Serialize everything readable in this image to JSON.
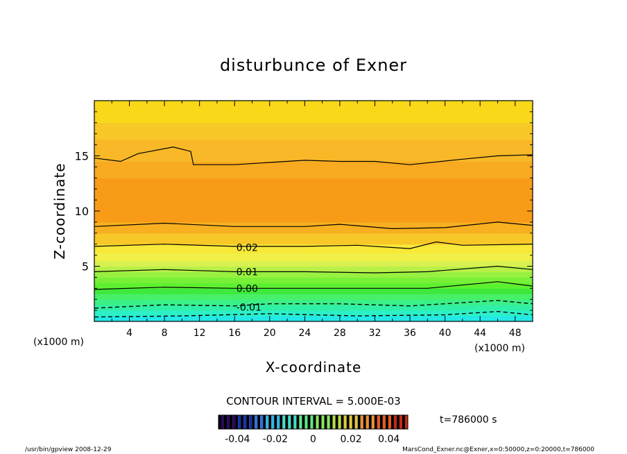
{
  "chart_data": {
    "type": "heatmap",
    "title": "disturbunce of Exner",
    "xlabel": "X-coordinate",
    "ylabel": "Z-coordinate",
    "x_units": "(x1000 m)",
    "y_units": "(x1000 m)",
    "xlim": [
      0,
      50
    ],
    "ylim": [
      0,
      20
    ],
    "x_ticks": [
      4,
      8,
      12,
      16,
      20,
      24,
      28,
      32,
      36,
      40,
      44,
      48
    ],
    "y_ticks": [
      5,
      10,
      15
    ],
    "contour_interval_text": "CONTOUR INTERVAL = 5.000E-03",
    "contour_labels": [
      {
        "text": "0.02",
        "x": 16.2,
        "z": 6.7
      },
      {
        "text": "0.01",
        "x": 16.2,
        "z": 4.5
      },
      {
        "text": "0.00",
        "x": 16.2,
        "z": 3.0
      },
      {
        "text": "-0.01",
        "x": 16.2,
        "z": 1.3
      }
    ],
    "colorbar": {
      "range": [
        -0.05,
        0.05
      ],
      "tick_labels": [
        "-0.04",
        "-0.02",
        "0",
        "0.02",
        "0.04"
      ],
      "tick_values": [
        -0.04,
        -0.02,
        0,
        0.02,
        0.04
      ],
      "colors": [
        "#2a0a5e",
        "#1830a8",
        "#2d6fe0",
        "#32b5e8",
        "#3fe0c8",
        "#5fe88a",
        "#8ae85a",
        "#b8e040",
        "#e0c838",
        "#f09030",
        "#e85a20",
        "#c82818"
      ]
    },
    "time_label": "t=786000 s",
    "footer_left": "/usr/bin/gpview  2008-12-29",
    "footer_right": "MarsCond_Exner.nc@Exner,x=0:50000,z=0:20000,t=786000",
    "bands": [
      {
        "z": [
          0,
          0.5
        ],
        "color": "#22e8e8"
      },
      {
        "z": [
          0.5,
          1.0
        ],
        "color": "#2cf0c8"
      },
      {
        "z": [
          1.0,
          1.5
        ],
        "color": "#30f0a8"
      },
      {
        "z": [
          1.5,
          2.0
        ],
        "color": "#3cf088"
      },
      {
        "z": [
          2.0,
          2.5
        ],
        "color": "#48f068"
      },
      {
        "z": [
          2.5,
          3.0
        ],
        "color": "#3ee83c"
      },
      {
        "z": [
          3.0,
          3.5
        ],
        "color": "#5ef030"
      },
      {
        "z": [
          3.5,
          4.0
        ],
        "color": "#78f038"
      },
      {
        "z": [
          4.0,
          4.5
        ],
        "color": "#98f040"
      },
      {
        "z": [
          4.5,
          5.0
        ],
        "color": "#b8f048"
      },
      {
        "z": [
          5.0,
          5.5
        ],
        "color": "#d8f050"
      },
      {
        "z": [
          5.5,
          6.2
        ],
        "color": "#f0f048"
      },
      {
        "z": [
          6.2,
          7.0
        ],
        "color": "#f8e838"
      },
      {
        "z": [
          7.0,
          8.0
        ],
        "color": "#f8c828"
      },
      {
        "z": [
          8.0,
          9.0
        ],
        "color": "#f8b020"
      },
      {
        "z": [
          9.0,
          13.0
        ],
        "color": "#f89c18"
      },
      {
        "z": [
          13.0,
          14.5
        ],
        "color": "#f8aa20"
      },
      {
        "z": [
          14.5,
          16.5
        ],
        "color": "#f8b828"
      },
      {
        "z": [
          16.5,
          18.0
        ],
        "color": "#f8c828"
      },
      {
        "z": [
          18.0,
          20.0
        ],
        "color": "#f8d818"
      }
    ],
    "contours": [
      {
        "dashed": true,
        "points": [
          [
            0,
            0.4
          ],
          [
            10,
            0.5
          ],
          [
            20,
            0.7
          ],
          [
            30,
            0.5
          ],
          [
            40,
            0.6
          ],
          [
            46,
            0.9
          ],
          [
            50,
            0.6
          ]
        ]
      },
      {
        "dashed": true,
        "points": [
          [
            0,
            1.2
          ],
          [
            8,
            1.5
          ],
          [
            16,
            1.4
          ],
          [
            20,
            1.6
          ],
          [
            28,
            1.6
          ],
          [
            36,
            1.4
          ],
          [
            46,
            1.9
          ],
          [
            50,
            1.6
          ]
        ]
      },
      {
        "dashed": false,
        "points": [
          [
            0,
            2.9
          ],
          [
            8,
            3.1
          ],
          [
            16,
            3.0
          ],
          [
            24,
            3.0
          ],
          [
            32,
            3.0
          ],
          [
            38,
            3.0
          ],
          [
            46,
            3.6
          ],
          [
            50,
            3.2
          ]
        ]
      },
      {
        "dashed": false,
        "points": [
          [
            0,
            4.5
          ],
          [
            8,
            4.7
          ],
          [
            16,
            4.5
          ],
          [
            24,
            4.5
          ],
          [
            32,
            4.4
          ],
          [
            38,
            4.5
          ],
          [
            46,
            5.0
          ],
          [
            50,
            4.7
          ]
        ]
      },
      {
        "dashed": false,
        "points": [
          [
            0,
            6.8
          ],
          [
            8,
            7.0
          ],
          [
            16,
            6.8
          ],
          [
            24,
            6.8
          ],
          [
            30,
            6.9
          ],
          [
            36,
            6.6
          ],
          [
            39,
            7.2
          ],
          [
            42,
            6.9
          ],
          [
            50,
            7.0
          ]
        ]
      },
      {
        "dashed": false,
        "points": [
          [
            0,
            8.6
          ],
          [
            8,
            8.9
          ],
          [
            16,
            8.6
          ],
          [
            24,
            8.6
          ],
          [
            28,
            8.8
          ],
          [
            34,
            8.4
          ],
          [
            40,
            8.5
          ],
          [
            46,
            9.0
          ],
          [
            50,
            8.7
          ]
        ]
      },
      {
        "dashed": false,
        "points": [
          [
            0,
            14.8
          ],
          [
            3,
            14.5
          ],
          [
            5,
            15.2
          ],
          [
            9,
            15.8
          ],
          [
            11,
            15.4
          ],
          [
            11.3,
            14.2
          ],
          [
            16,
            14.2
          ],
          [
            20,
            14.4
          ],
          [
            24,
            14.6
          ],
          [
            28,
            14.5
          ],
          [
            32,
            14.5
          ],
          [
            36,
            14.2
          ],
          [
            42,
            14.7
          ],
          [
            46,
            15.0
          ],
          [
            50,
            15.1
          ]
        ]
      }
    ]
  }
}
